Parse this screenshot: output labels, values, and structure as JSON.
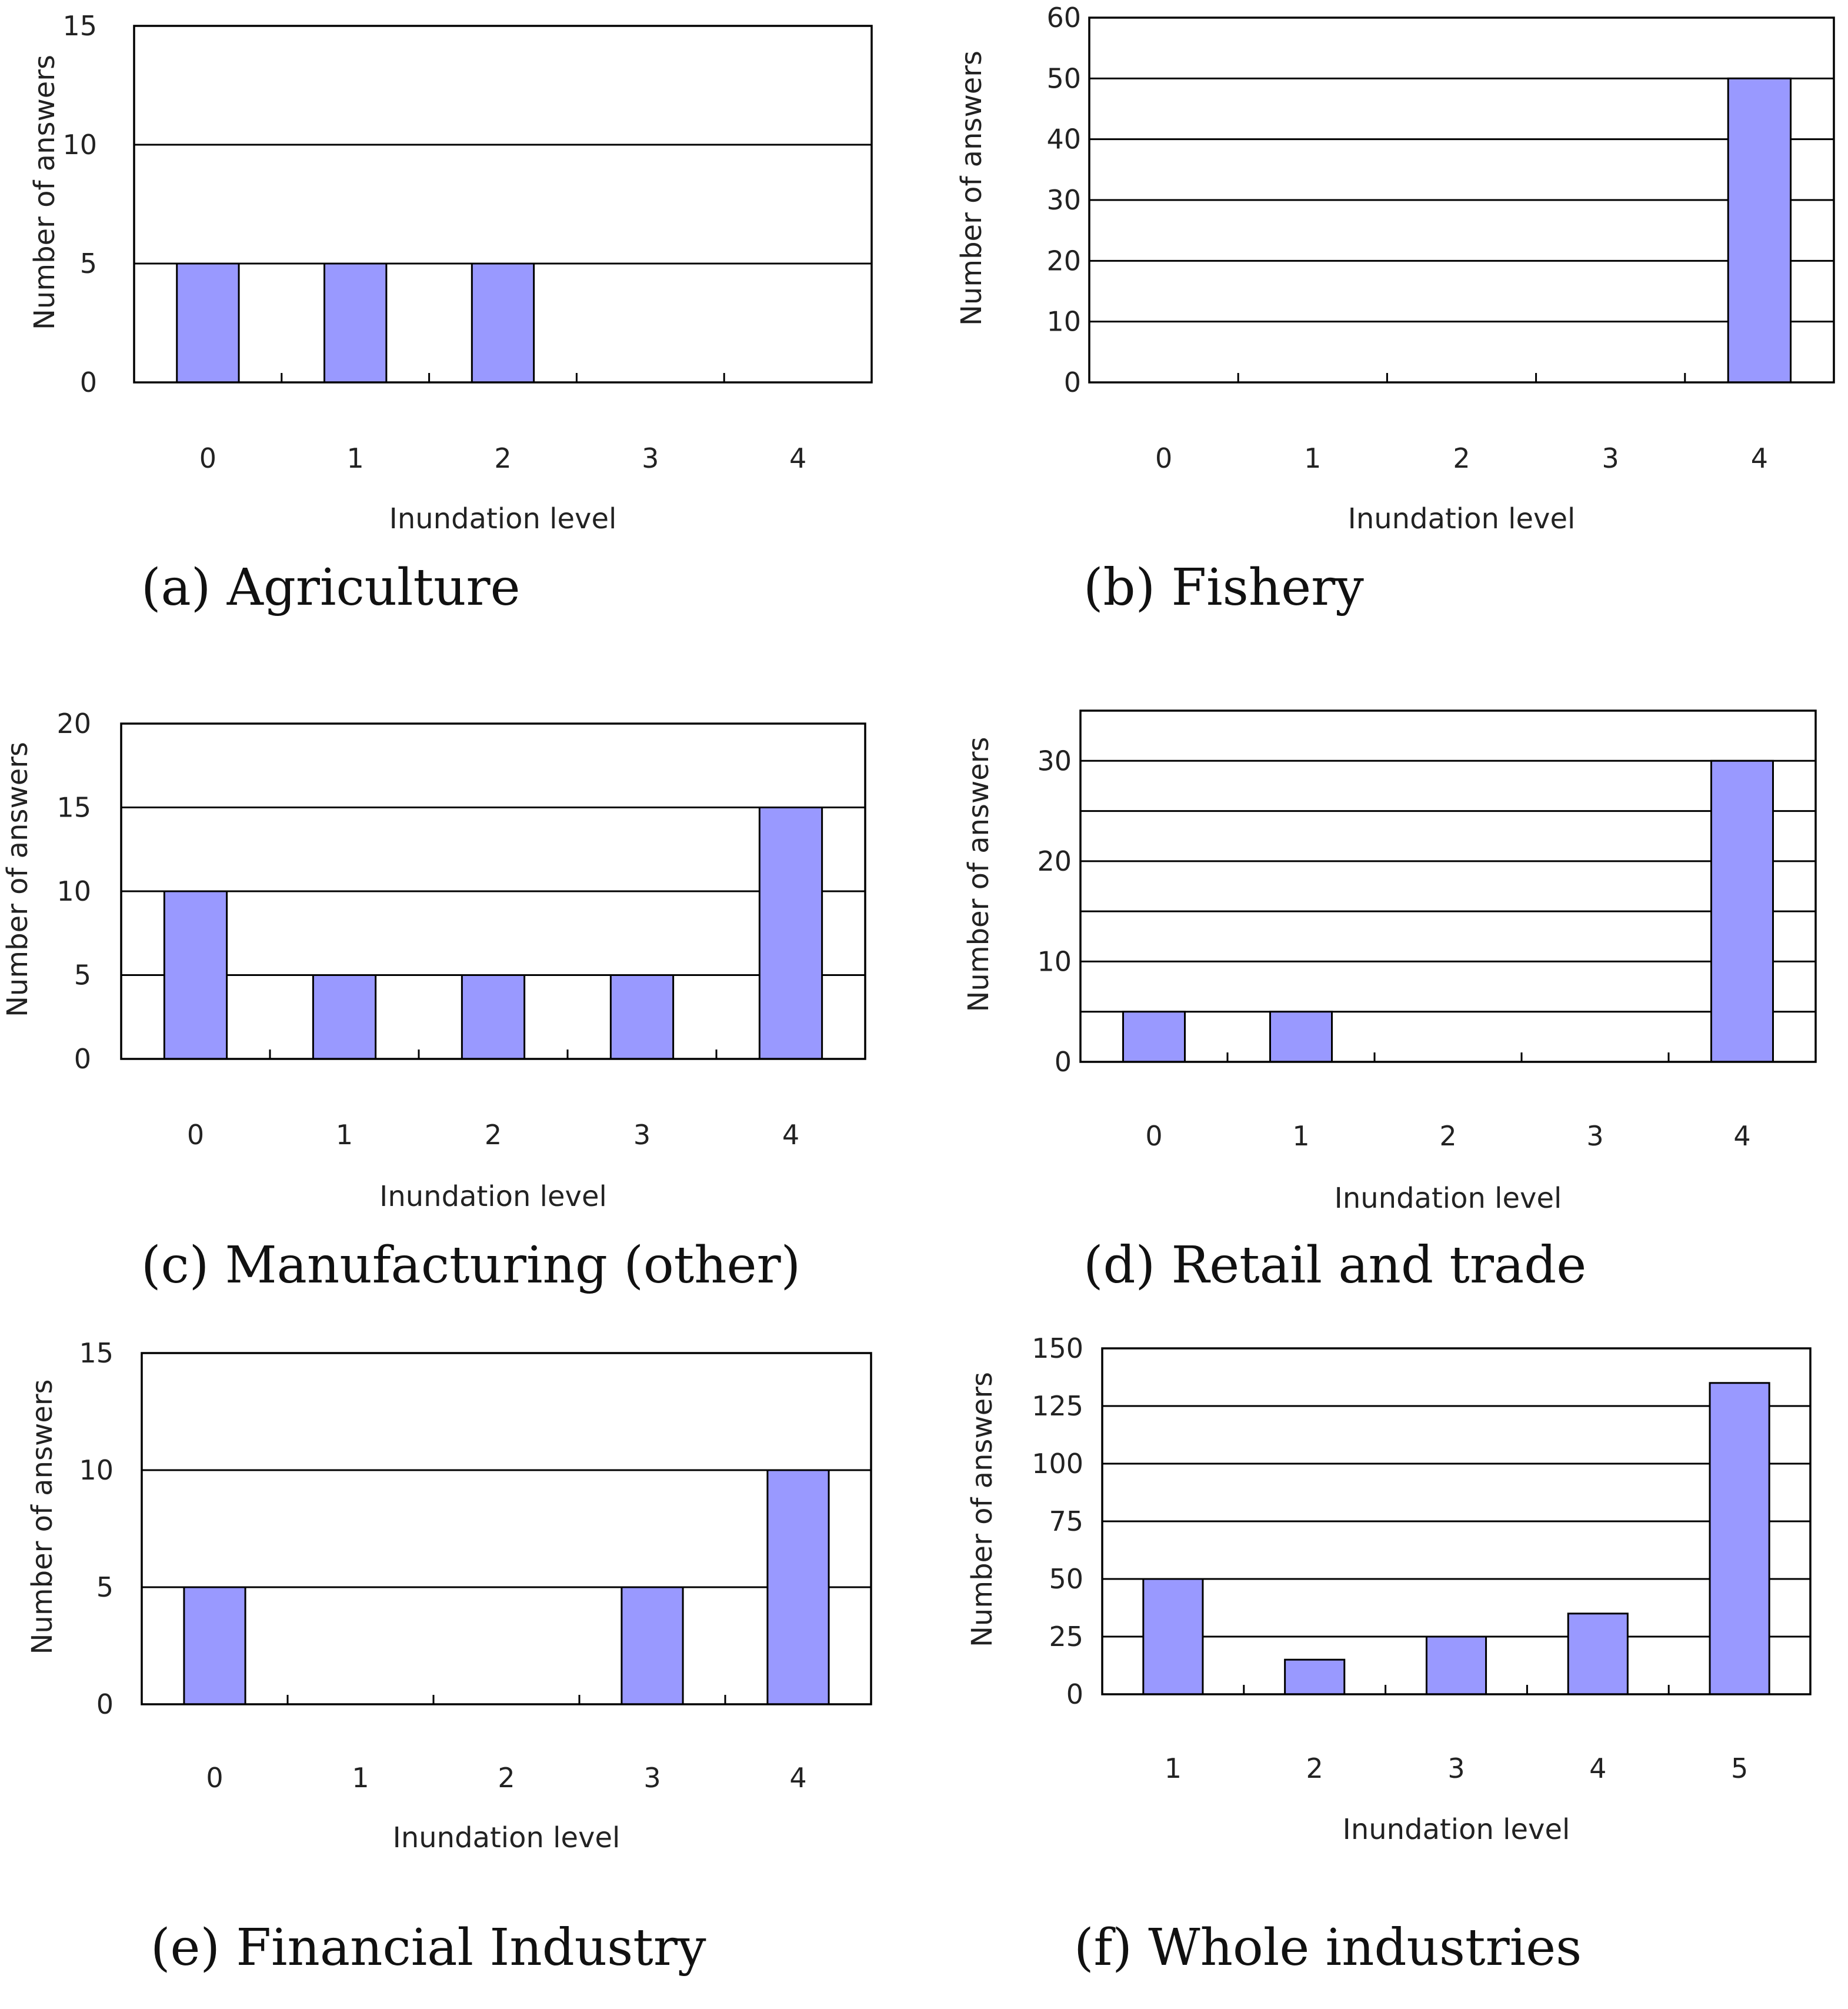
{
  "chart_data": [
    {
      "id": "a",
      "type": "bar",
      "caption": "(a) Agriculture",
      "xlabel": "Inundation level",
      "ylabel": "Number of answers",
      "categories": [
        "0",
        "1",
        "2",
        "3",
        "4"
      ],
      "values": [
        5,
        5,
        5,
        0,
        0
      ],
      "ylim": [
        0,
        15
      ],
      "yticks": [
        0,
        5,
        10,
        15
      ],
      "gridlines": [
        5,
        10
      ],
      "grid": true,
      "bar_color": "#9999ff"
    },
    {
      "id": "b",
      "type": "bar",
      "caption": "(b) Fishery",
      "xlabel": "Inundation level",
      "ylabel": "Number of answers",
      "categories": [
        "0",
        "1",
        "2",
        "3",
        "4"
      ],
      "values": [
        0,
        0,
        0,
        0,
        50
      ],
      "ylim": [
        0,
        60
      ],
      "yticks": [
        0,
        10,
        20,
        30,
        40,
        50,
        60
      ],
      "gridlines": [
        10,
        20,
        30,
        40,
        50
      ],
      "grid": true,
      "bar_color": "#9999ff"
    },
    {
      "id": "c",
      "type": "bar",
      "caption": "(c) Manufacturing (other)",
      "xlabel": "Inundation level",
      "ylabel": "Number of answers",
      "categories": [
        "0",
        "1",
        "2",
        "3",
        "4"
      ],
      "values": [
        10,
        5,
        5,
        5,
        15
      ],
      "ylim": [
        0,
        20
      ],
      "yticks": [
        0,
        5,
        10,
        15,
        20
      ],
      "gridlines": [
        5,
        10,
        15
      ],
      "grid": true,
      "bar_color": "#9999ff"
    },
    {
      "id": "d",
      "type": "bar",
      "caption": "(d) Retail and trade",
      "xlabel": "Inundation level",
      "ylabel": "Number of answers",
      "categories": [
        "0",
        "1",
        "2",
        "3",
        "4"
      ],
      "values": [
        5,
        5,
        0,
        0,
        30
      ],
      "ylim": [
        0,
        35
      ],
      "yticks": [
        0,
        10,
        20,
        30
      ],
      "gridlines": [
        5,
        10,
        15,
        20,
        25,
        30
      ],
      "grid": true,
      "bar_color": "#9999ff"
    },
    {
      "id": "e",
      "type": "bar",
      "caption": "(e) Financial Industry",
      "xlabel": "Inundation level",
      "ylabel": "Number of answers",
      "categories": [
        "0",
        "1",
        "2",
        "3",
        "4"
      ],
      "values": [
        5,
        0,
        0,
        5,
        10
      ],
      "ylim": [
        0,
        15
      ],
      "yticks": [
        0,
        5,
        10,
        15
      ],
      "gridlines": [
        5,
        10
      ],
      "grid": true,
      "bar_color": "#9999ff"
    },
    {
      "id": "f",
      "type": "bar",
      "caption": "(f) Whole industries",
      "xlabel": "Inundation level",
      "ylabel": "Number of answers",
      "categories": [
        "1",
        "2",
        "3",
        "4",
        "5"
      ],
      "values": [
        50,
        15,
        25,
        35,
        135
      ],
      "ylim": [
        0,
        150
      ],
      "yticks": [
        0,
        25,
        50,
        75,
        100,
        125,
        150
      ],
      "gridlines": [
        25,
        50,
        75,
        100,
        125
      ],
      "grid": true,
      "bar_color": "#9999ff"
    }
  ]
}
